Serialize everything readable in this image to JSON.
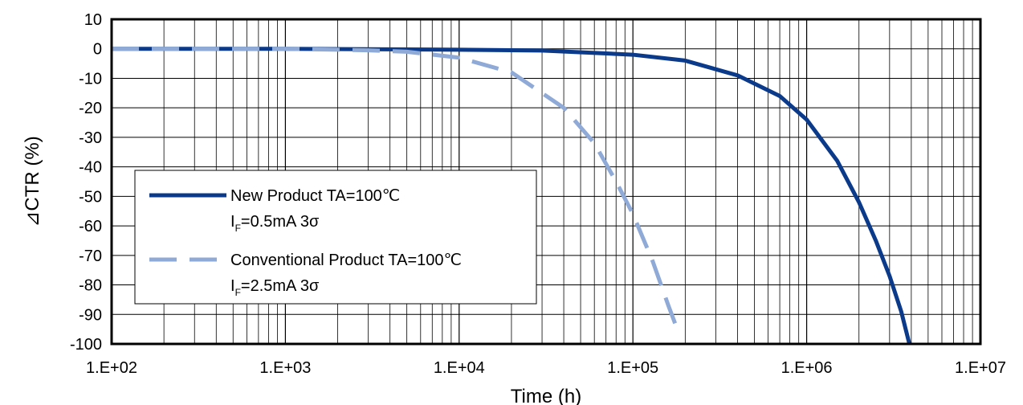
{
  "chart_data": {
    "type": "line",
    "xlabel": "Time (h)",
    "ylabel": "⊿CTR (%)",
    "xscale": "log",
    "xlim": [
      100,
      10000000
    ],
    "ylim": [
      -100,
      10
    ],
    "xticks": [
      "1.E+02",
      "1.E+03",
      "1.E+04",
      "1.E+05",
      "1.E+06",
      "1.E+07"
    ],
    "yticks": [
      "10",
      "0",
      "-10",
      "-20",
      "-30",
      "-40",
      "-50",
      "-60",
      "-70",
      "-80",
      "-90",
      "-100"
    ],
    "grid": true,
    "legend_position": "lower-left",
    "series": [
      {
        "name": "New Product TA=100℃",
        "subtitle": {
          "prefix": "I",
          "subscript": "F",
          "suffix": "=0.5mA  3σ"
        },
        "style": "solid",
        "color": "#0b3a8a",
        "x": [
          100,
          1000,
          10000,
          30000,
          100000,
          200000,
          400000,
          700000,
          1000000,
          1500000,
          2000000,
          2500000,
          3000000,
          3500000,
          3900000
        ],
        "y": [
          0,
          0,
          -0.3,
          -0.6,
          -2,
          -4,
          -9,
          -16,
          -24,
          -38,
          -52,
          -65,
          -77,
          -89,
          -100
        ]
      },
      {
        "name": "Conventional Product TA=100℃",
        "subtitle": {
          "prefix": "I",
          "subscript": "F",
          "suffix": "=2.5mA  3σ"
        },
        "style": "dashed",
        "color": "#8faad6",
        "x": [
          100,
          1000,
          3000,
          5000,
          10000,
          20000,
          40000,
          60000,
          80000,
          100000,
          130000,
          160000,
          180000
        ],
        "y": [
          0,
          0,
          -0.5,
          -1,
          -3,
          -8,
          -20,
          -32,
          -45,
          -56,
          -72,
          -87,
          -95
        ]
      }
    ]
  }
}
